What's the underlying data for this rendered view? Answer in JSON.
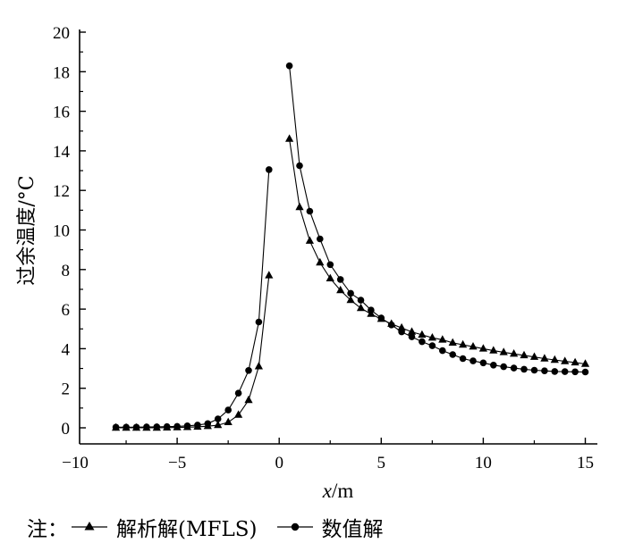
{
  "chart_data": {
    "type": "line",
    "xlabel_italic": "x",
    "xlabel_rest": "/m",
    "ylabel": "过余温度/°C",
    "xlim": [
      -10,
      15
    ],
    "ylim": [
      0,
      20
    ],
    "x_ticks": [
      "−10",
      "−5",
      "0",
      "5",
      "10",
      "15"
    ],
    "y_ticks": [
      "0",
      "2",
      "4",
      "6",
      "8",
      "10",
      "12",
      "14",
      "16",
      "18",
      "20"
    ],
    "grid": false,
    "legend": {
      "prefix": "注：",
      "placement": "bottom",
      "entries": [
        "解析解(MFLS)",
        "数值解"
      ]
    },
    "series": [
      {
        "name": "解析解(MFLS)",
        "marker": "triangle",
        "segments": [
          [
            [
              -8.0,
              0.0
            ],
            [
              -7.5,
              0.0
            ],
            [
              -7.0,
              0.0
            ],
            [
              -6.5,
              0.0
            ],
            [
              -6.0,
              0.0
            ],
            [
              -5.5,
              0.01
            ],
            [
              -5.0,
              0.02
            ],
            [
              -4.5,
              0.03
            ],
            [
              -4.0,
              0.05
            ],
            [
              -3.5,
              0.08
            ],
            [
              -3.0,
              0.13
            ],
            [
              -2.5,
              0.28
            ],
            [
              -2.0,
              0.65
            ],
            [
              -1.5,
              1.4
            ],
            [
              -1.0,
              3.1
            ],
            [
              -0.5,
              7.7
            ]
          ],
          [
            [
              0.5,
              14.6
            ],
            [
              1.0,
              11.15
            ],
            [
              1.5,
              9.45
            ],
            [
              2.0,
              8.35
            ],
            [
              2.5,
              7.55
            ],
            [
              3.0,
              6.95
            ],
            [
              3.5,
              6.45
            ],
            [
              4.0,
              6.05
            ],
            [
              4.5,
              5.75
            ],
            [
              5.0,
              5.5
            ],
            [
              5.5,
              5.25
            ],
            [
              6.0,
              5.05
            ],
            [
              6.5,
              4.85
            ],
            [
              7.0,
              4.7
            ],
            [
              7.5,
              4.55
            ],
            [
              8.0,
              4.45
            ],
            [
              8.5,
              4.3
            ],
            [
              9.0,
              4.2
            ],
            [
              9.5,
              4.1
            ],
            [
              10.0,
              4.0
            ],
            [
              10.5,
              3.9
            ],
            [
              11.0,
              3.82
            ],
            [
              11.5,
              3.74
            ],
            [
              12.0,
              3.66
            ],
            [
              12.5,
              3.58
            ],
            [
              13.0,
              3.5
            ],
            [
              13.5,
              3.43
            ],
            [
              14.0,
              3.36
            ],
            [
              14.5,
              3.3
            ],
            [
              15.0,
              3.23
            ]
          ]
        ]
      },
      {
        "name": "数值解",
        "marker": "circle",
        "segments": [
          [
            [
              -8.0,
              0.03
            ],
            [
              -7.5,
              0.03
            ],
            [
              -7.0,
              0.03
            ],
            [
              -6.5,
              0.04
            ],
            [
              -6.0,
              0.05
            ],
            [
              -5.5,
              0.06
            ],
            [
              -5.0,
              0.07
            ],
            [
              -4.5,
              0.1
            ],
            [
              -4.0,
              0.14
            ],
            [
              -3.5,
              0.21
            ],
            [
              -3.0,
              0.45
            ],
            [
              -2.5,
              0.9
            ],
            [
              -2.0,
              1.75
            ],
            [
              -1.5,
              2.9
            ],
            [
              -1.0,
              5.35
            ],
            [
              -0.5,
              13.05
            ]
          ],
          [
            [
              0.5,
              18.3
            ],
            [
              1.0,
              13.25
            ],
            [
              1.5,
              10.95
            ],
            [
              2.0,
              9.55
            ],
            [
              2.5,
              8.25
            ],
            [
              3.0,
              7.5
            ],
            [
              3.5,
              6.8
            ],
            [
              4.0,
              6.45
            ],
            [
              4.5,
              5.95
            ],
            [
              5.0,
              5.55
            ],
            [
              5.5,
              5.2
            ],
            [
              6.0,
              4.85
            ],
            [
              6.5,
              4.6
            ],
            [
              7.0,
              4.35
            ],
            [
              7.5,
              4.15
            ],
            [
              8.0,
              3.9
            ],
            [
              8.5,
              3.7
            ],
            [
              9.0,
              3.5
            ],
            [
              9.5,
              3.38
            ],
            [
              10.0,
              3.28
            ],
            [
              10.5,
              3.17
            ],
            [
              11.0,
              3.09
            ],
            [
              11.5,
              3.02
            ],
            [
              12.0,
              2.96
            ],
            [
              12.5,
              2.91
            ],
            [
              13.0,
              2.88
            ],
            [
              13.5,
              2.85
            ],
            [
              14.0,
              2.84
            ],
            [
              14.5,
              2.83
            ],
            [
              15.0,
              2.82
            ]
          ]
        ]
      }
    ]
  }
}
